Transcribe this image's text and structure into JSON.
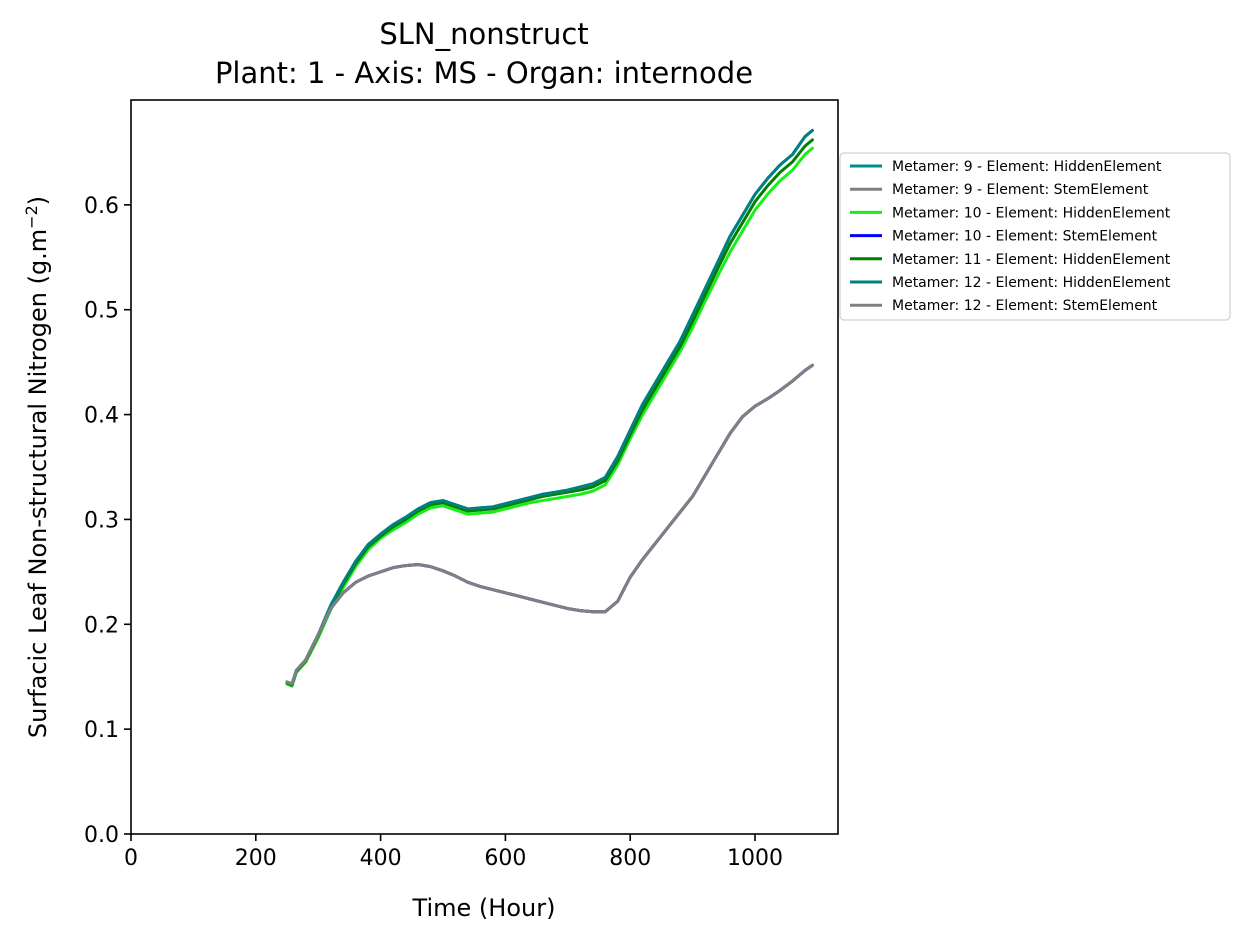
{
  "chart_data": {
    "type": "line",
    "title": "SLN_nonstruct",
    "subtitle": "Plant: 1 - Axis: MS - Organ: internode",
    "xlabel": "Time (Hour)",
    "ylabel_main": "Surfacic Leaf Non-structural Nitrogen (g.m",
    "ylabel_sup": "−2",
    "ylabel_close": ")",
    "xlim": [
      0,
      1133
    ],
    "ylim": [
      0,
      0.7
    ],
    "x_ticks": [
      0,
      200,
      400,
      600,
      800,
      1000
    ],
    "y_ticks": [
      0.0,
      0.1,
      0.2,
      0.3,
      0.4,
      0.5,
      0.6
    ],
    "x_tick_labels": [
      "0",
      "200",
      "400",
      "600",
      "800",
      "1000"
    ],
    "y_tick_labels": [
      "0.0",
      "0.1",
      "0.2",
      "0.3",
      "0.4",
      "0.5",
      "0.6"
    ],
    "grid": false,
    "legend_position": "outside-right",
    "series": [
      {
        "name": "Metamer: 9 - Element: HiddenElement",
        "color": "#008b8b",
        "x": [
          250,
          258,
          265,
          280,
          300,
          320,
          340,
          360,
          380,
          400,
          420,
          440,
          460,
          480,
          500,
          520,
          540,
          560,
          580,
          600,
          620,
          640,
          660,
          680,
          700,
          720,
          740,
          760,
          780,
          800,
          820,
          840,
          860,
          880,
          900,
          920,
          940,
          960,
          980,
          1000,
          1020,
          1040,
          1060,
          1080,
          1092
        ],
        "y": [
          0.145,
          0.143,
          0.156,
          0.166,
          0.19,
          0.218,
          0.24,
          0.26,
          0.276,
          0.286,
          0.295,
          0.302,
          0.31,
          0.316,
          0.318,
          0.314,
          0.31,
          0.311,
          0.312,
          0.315,
          0.318,
          0.321,
          0.324,
          0.326,
          0.328,
          0.331,
          0.334,
          0.34,
          0.36,
          0.385,
          0.41,
          0.43,
          0.45,
          0.47,
          0.495,
          0.52,
          0.545,
          0.57,
          0.59,
          0.61,
          0.625,
          0.638,
          0.648,
          0.665,
          0.671
        ]
      },
      {
        "name": "Metamer: 9 - Element: StemElement",
        "color": "#808080",
        "x": [
          250,
          258,
          265,
          280,
          300,
          320,
          340,
          360,
          380,
          400,
          420,
          440,
          460,
          480,
          500,
          520,
          540,
          560,
          580,
          600,
          620,
          640,
          660,
          680,
          700,
          720,
          740,
          760,
          780,
          800,
          820,
          840,
          860,
          880,
          900,
          920,
          940,
          960,
          980,
          1000,
          1020,
          1040,
          1060,
          1080,
          1092
        ],
        "y": [
          0.145,
          0.143,
          0.156,
          0.166,
          0.19,
          0.215,
          0.23,
          0.24,
          0.246,
          0.25,
          0.254,
          0.256,
          0.257,
          0.255,
          0.251,
          0.246,
          0.24,
          0.236,
          0.233,
          0.23,
          0.227,
          0.224,
          0.221,
          0.218,
          0.215,
          0.213,
          0.212,
          0.212,
          0.222,
          0.245,
          0.262,
          0.277,
          0.292,
          0.307,
          0.322,
          0.342,
          0.362,
          0.382,
          0.398,
          0.408,
          0.415,
          0.423,
          0.432,
          0.442,
          0.447
        ]
      },
      {
        "name": "Metamer: 10 - Element: HiddenElement",
        "color": "#1aee1a",
        "x": [
          250,
          258,
          265,
          280,
          300,
          320,
          340,
          360,
          380,
          400,
          420,
          440,
          460,
          480,
          500,
          520,
          540,
          560,
          580,
          600,
          620,
          640,
          660,
          680,
          700,
          720,
          740,
          760,
          780,
          800,
          820,
          840,
          860,
          880,
          900,
          920,
          940,
          960,
          980,
          1000,
          1020,
          1040,
          1060,
          1080,
          1092
        ],
        "y": [
          0.143,
          0.141,
          0.154,
          0.164,
          0.187,
          0.214,
          0.235,
          0.255,
          0.271,
          0.282,
          0.29,
          0.297,
          0.305,
          0.311,
          0.313,
          0.309,
          0.305,
          0.306,
          0.307,
          0.31,
          0.313,
          0.316,
          0.318,
          0.32,
          0.322,
          0.324,
          0.327,
          0.333,
          0.352,
          0.377,
          0.4,
          0.42,
          0.44,
          0.46,
          0.483,
          0.508,
          0.532,
          0.555,
          0.575,
          0.595,
          0.61,
          0.623,
          0.633,
          0.648,
          0.654
        ]
      },
      {
        "name": "Metamer: 10 - Element: StemElement",
        "color": "#0000ff",
        "x": [
          250,
          258,
          265,
          280,
          300,
          320,
          340,
          360,
          380,
          400,
          420,
          440,
          460,
          480,
          500,
          520,
          540,
          560,
          580,
          600,
          620,
          640,
          660,
          680,
          700,
          720,
          740,
          760,
          780,
          800,
          820,
          840,
          860,
          880,
          900,
          920,
          940,
          960,
          980,
          1000,
          1020,
          1040,
          1060,
          1080,
          1092
        ],
        "y": [
          0.145,
          0.143,
          0.156,
          0.166,
          0.19,
          0.215,
          0.23,
          0.24,
          0.246,
          0.25,
          0.254,
          0.256,
          0.257,
          0.255,
          0.251,
          0.246,
          0.24,
          0.236,
          0.233,
          0.23,
          0.227,
          0.224,
          0.221,
          0.218,
          0.215,
          0.213,
          0.212,
          0.212,
          0.222,
          0.245,
          0.262,
          0.277,
          0.292,
          0.307,
          0.322,
          0.342,
          0.362,
          0.382,
          0.398,
          0.408,
          0.415,
          0.423,
          0.432,
          0.442,
          0.447
        ]
      },
      {
        "name": "Metamer: 11 - Element: HiddenElement",
        "color": "#008000",
        "x": [
          250,
          258,
          265,
          280,
          300,
          320,
          340,
          360,
          380,
          400,
          420,
          440,
          460,
          480,
          500,
          520,
          540,
          560,
          580,
          600,
          620,
          640,
          660,
          680,
          700,
          720,
          740,
          760,
          780,
          800,
          820,
          840,
          860,
          880,
          900,
          920,
          940,
          960,
          980,
          1000,
          1020,
          1040,
          1060,
          1080,
          1092
        ],
        "y": [
          0.144,
          0.142,
          0.155,
          0.165,
          0.189,
          0.216,
          0.238,
          0.258,
          0.274,
          0.284,
          0.293,
          0.3,
          0.308,
          0.314,
          0.316,
          0.312,
          0.308,
          0.309,
          0.31,
          0.313,
          0.316,
          0.319,
          0.322,
          0.324,
          0.326,
          0.328,
          0.331,
          0.337,
          0.356,
          0.381,
          0.405,
          0.425,
          0.445,
          0.465,
          0.489,
          0.514,
          0.539,
          0.563,
          0.583,
          0.603,
          0.618,
          0.631,
          0.641,
          0.656,
          0.662
        ]
      },
      {
        "name": "Metamer: 12 - Element: HiddenElement",
        "color": "#008080",
        "x": [
          250,
          258,
          265,
          280,
          300,
          320,
          340,
          360,
          380,
          400,
          420,
          440,
          460,
          480,
          500,
          520,
          540,
          560,
          580,
          600,
          620,
          640,
          660,
          680,
          700,
          720,
          740,
          760,
          780,
          800,
          820,
          840,
          860,
          880,
          900,
          920,
          940,
          960,
          980,
          1000,
          1020,
          1040,
          1060,
          1080,
          1092
        ],
        "y": [
          0.145,
          0.143,
          0.156,
          0.166,
          0.19,
          0.218,
          0.24,
          0.26,
          0.276,
          0.286,
          0.295,
          0.302,
          0.31,
          0.316,
          0.318,
          0.314,
          0.31,
          0.311,
          0.312,
          0.315,
          0.318,
          0.321,
          0.324,
          0.326,
          0.328,
          0.331,
          0.334,
          0.34,
          0.36,
          0.385,
          0.41,
          0.43,
          0.45,
          0.47,
          0.495,
          0.52,
          0.545,
          0.57,
          0.59,
          0.61,
          0.625,
          0.638,
          0.648,
          0.665,
          0.671
        ]
      },
      {
        "name": "Metamer: 12 - Element: StemElement",
        "color": "#808080",
        "x": [
          250,
          258,
          265,
          280,
          300,
          320,
          340,
          360,
          380,
          400,
          420,
          440,
          460,
          480,
          500,
          520,
          540,
          560,
          580,
          600,
          620,
          640,
          660,
          680,
          700,
          720,
          740,
          760,
          780,
          800,
          820,
          840,
          860,
          880,
          900,
          920,
          940,
          960,
          980,
          1000,
          1020,
          1040,
          1060,
          1080,
          1092
        ],
        "y": [
          0.145,
          0.143,
          0.156,
          0.166,
          0.19,
          0.215,
          0.23,
          0.24,
          0.246,
          0.25,
          0.254,
          0.256,
          0.257,
          0.255,
          0.251,
          0.246,
          0.24,
          0.236,
          0.233,
          0.23,
          0.227,
          0.224,
          0.221,
          0.218,
          0.215,
          0.213,
          0.212,
          0.212,
          0.222,
          0.245,
          0.262,
          0.277,
          0.292,
          0.307,
          0.322,
          0.342,
          0.362,
          0.382,
          0.398,
          0.408,
          0.415,
          0.423,
          0.432,
          0.442,
          0.447
        ]
      }
    ]
  }
}
